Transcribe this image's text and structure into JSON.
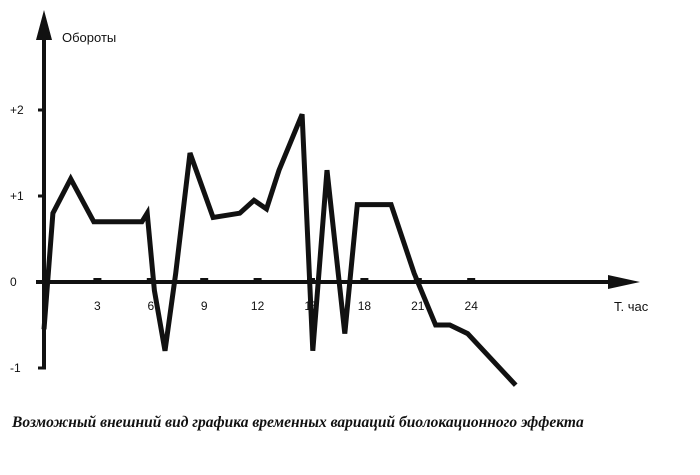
{
  "caption": "Возможный внешний вид графика временных вариаций биолокационного эффекта",
  "chart_data": {
    "type": "line",
    "title": "",
    "ylabel": "Обороты",
    "xlabel": "Т. час",
    "x_ticks": [
      "3",
      "6",
      "9",
      "12",
      "15",
      "18",
      "21",
      "24"
    ],
    "y_ticks": [
      "+2",
      "+1",
      "0",
      "-1"
    ],
    "xlim": [
      0,
      34
    ],
    "ylim": [
      -1.35,
      3.0
    ],
    "grid": false,
    "series": [
      {
        "name": "",
        "color": "#111111",
        "x": [
          0,
          0.5,
          1.5,
          2.8,
          4,
          5.5,
          5.8,
          6.2,
          6.8,
          7.4,
          8.2,
          9.5,
          11,
          11.8,
          12.5,
          13.2,
          14.5,
          15.1,
          15.9,
          16.9,
          17.6,
          18.2,
          19.5,
          20.8,
          22,
          22.8,
          23.8,
          26.5
        ],
        "y": [
          -0.55,
          0.8,
          1.2,
          0.7,
          0.7,
          0.7,
          0.8,
          -0.1,
          -0.8,
          0.1,
          1.5,
          0.75,
          0.8,
          0.95,
          0.85,
          1.3,
          1.95,
          -0.8,
          1.3,
          -0.6,
          0.9,
          0.9,
          0.9,
          0.1,
          -0.5,
          -0.5,
          -0.6,
          -1.2
        ]
      }
    ]
  }
}
